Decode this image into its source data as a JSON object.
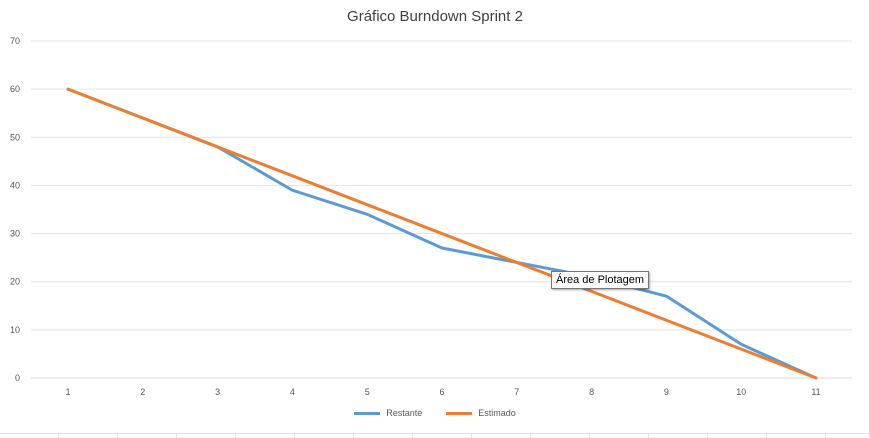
{
  "chart_data": {
    "type": "line",
    "title": "Gráfico Burndown Sprint 2",
    "xlabel": "",
    "ylabel": "",
    "categories": [
      "1",
      "2",
      "3",
      "4",
      "5",
      "6",
      "7",
      "8",
      "9",
      "10",
      "11"
    ],
    "ylim": [
      0,
      70
    ],
    "yticks": [
      "0",
      "10",
      "20",
      "30",
      "40",
      "50",
      "60",
      "70"
    ],
    "grid": true,
    "legend_position": "bottom",
    "series": [
      {
        "name": "Restante",
        "color": "#5b9bd5",
        "values": [
          60,
          54,
          48,
          39,
          34,
          27,
          24,
          21,
          17,
          7,
          0
        ]
      },
      {
        "name": "Estimado",
        "color": "#ed7d31",
        "values": [
          60,
          54,
          48,
          42,
          36,
          30,
          24,
          18,
          12,
          6,
          0
        ]
      }
    ]
  },
  "tooltip": {
    "text": "Área de Plotagem"
  }
}
